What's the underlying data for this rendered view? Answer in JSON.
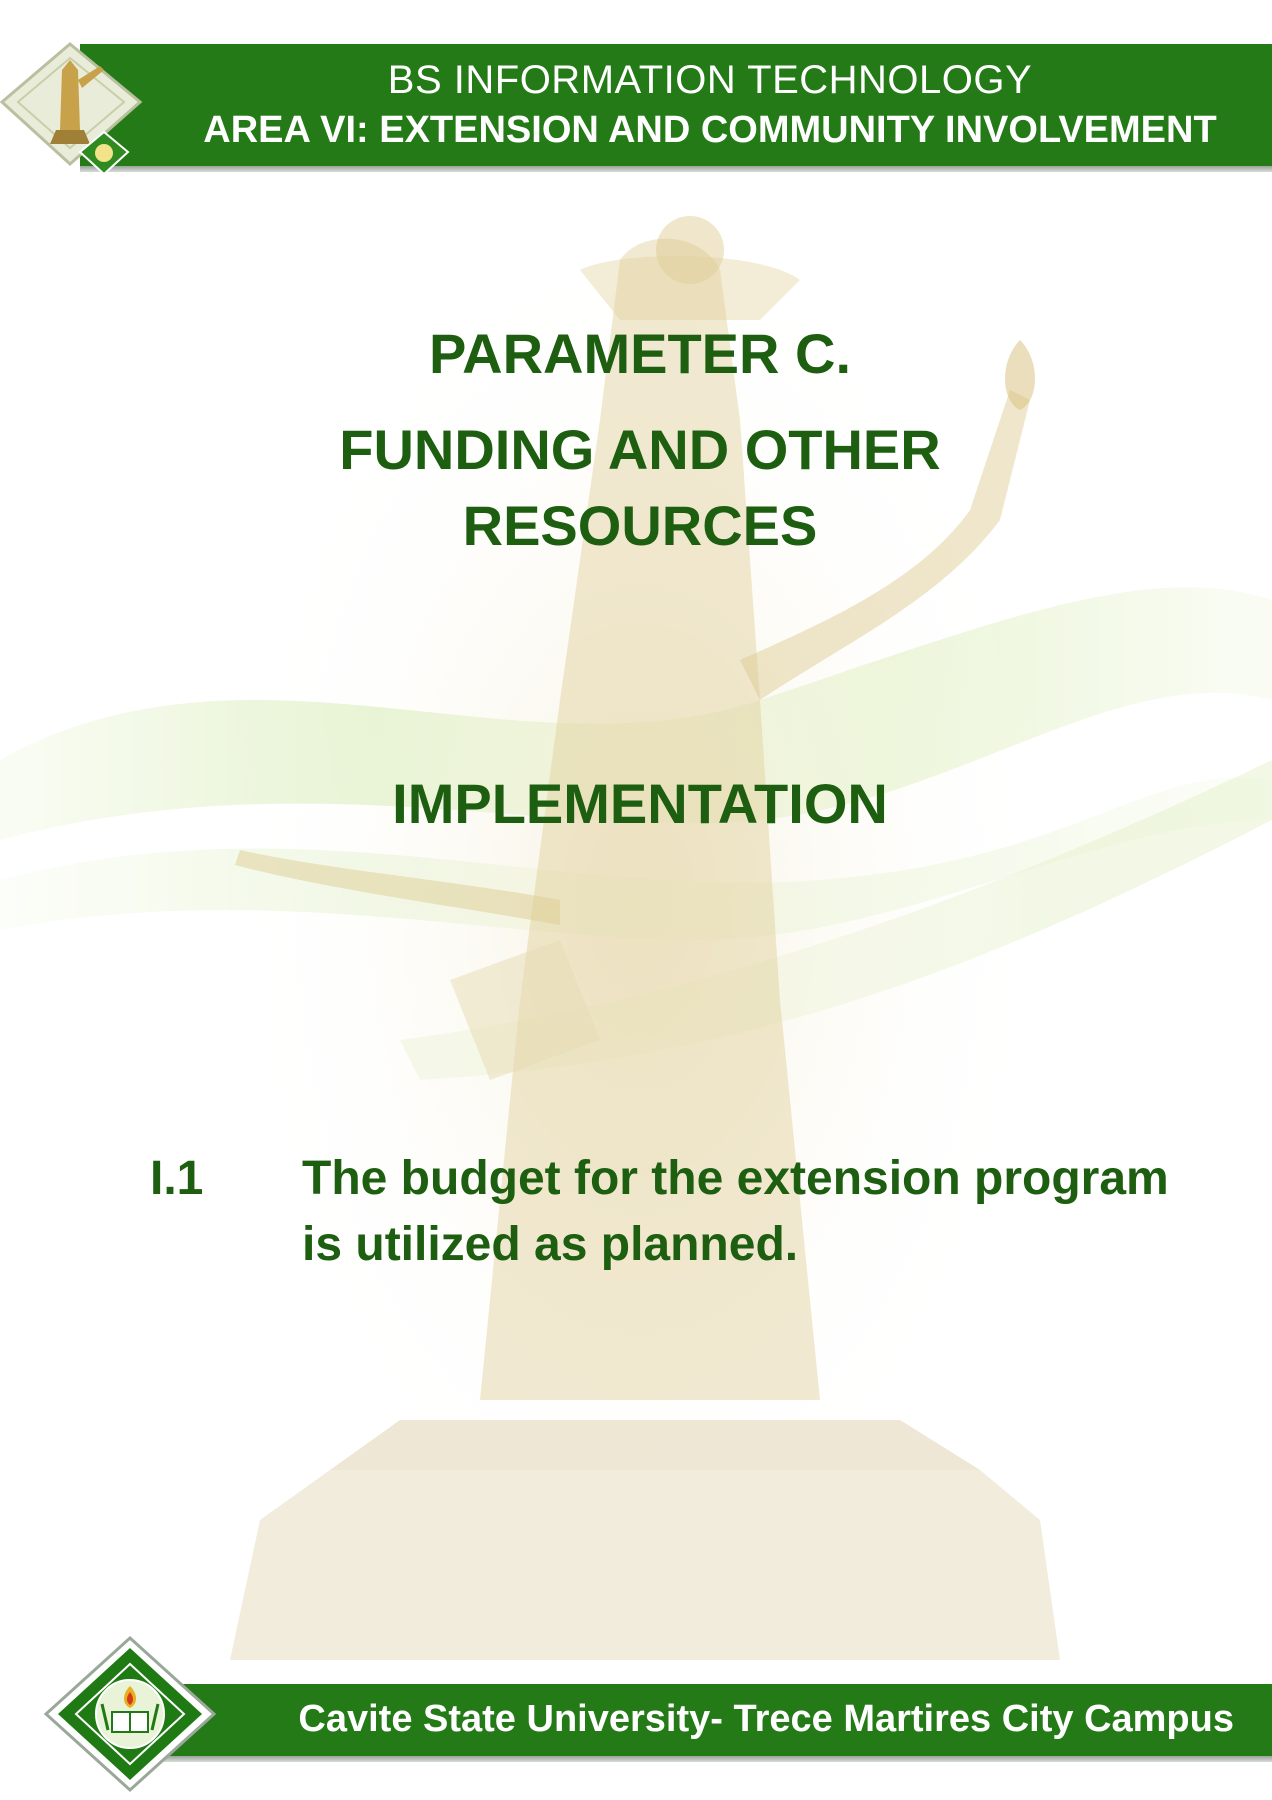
{
  "header": {
    "program": "BS INFORMATION TECHNOLOGY",
    "area": "AREA VI: EXTENSION AND COMMUNITY INVOLVEMENT"
  },
  "main": {
    "parameter": "PARAMETER C.",
    "parameter_title": "FUNDING AND OTHER RESOURCES",
    "section": "IMPLEMENTATION",
    "item_number": "I.1",
    "item_text": "The budget for the extension program is utilized as planned."
  },
  "footer": {
    "campus": "Cavite State University- Trece Martires City Campus"
  },
  "colors": {
    "brand_green": "#237a16",
    "text_green": "#1d5e10",
    "watermark_gold": "#d8c890"
  },
  "icons": {
    "header_logo": "monument-emblem-icon",
    "footer_logo": "university-seal-icon",
    "background": "monument-statue-watermark"
  }
}
